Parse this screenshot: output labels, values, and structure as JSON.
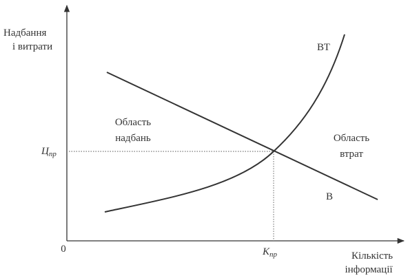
{
  "axes": {
    "y_label": [
      "Надбання",
      "і витрати"
    ],
    "x_label": [
      "Кількість",
      "інформації"
    ],
    "origin": "0"
  },
  "curves": [
    {
      "label": "ВТ"
    },
    {
      "label": "В"
    }
  ],
  "regions": [
    {
      "label": [
        "Область",
        "надбань"
      ]
    },
    {
      "label": [
        "Область",
        "втрат"
      ]
    }
  ],
  "equilibrium": {
    "y_label": {
      "main": "Ц",
      "sub": "пр"
    },
    "x_label": {
      "main": "К",
      "sub": "пр"
    }
  }
}
